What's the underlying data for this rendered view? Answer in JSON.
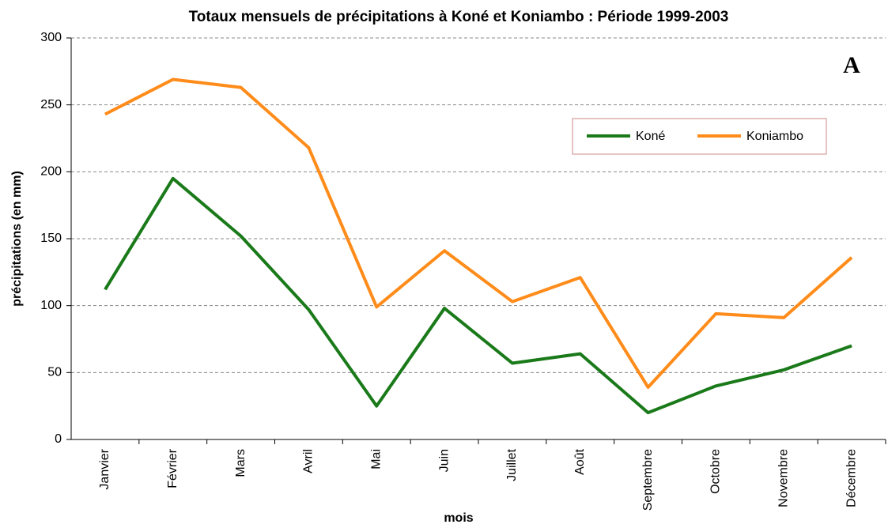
{
  "chart_data": {
    "type": "line",
    "title": "Totaux mensuels de précipitations à Koné et Koniambo : Période 1999-2003",
    "annotation": "A",
    "x_label": "mois",
    "y_label": "précipitations (en mm)",
    "categories": [
      "Janvier",
      "Février",
      "Mars",
      "Avril",
      "Mai",
      "Juin",
      "Juillet",
      "Août",
      "Septembre",
      "Octobre",
      "Novembre",
      "Décembre"
    ],
    "series": [
      {
        "name": "Koné",
        "color": "#1a7a1a",
        "values": [
          112,
          195,
          152,
          97,
          25,
          98,
          57,
          64,
          20,
          40,
          52,
          70
        ]
      },
      {
        "name": "Koniambo",
        "color": "#ff8c1a",
        "values": [
          243,
          269,
          263,
          218,
          99,
          141,
          103,
          121,
          39,
          94,
          91,
          136
        ]
      }
    ],
    "ylim": [
      0,
      300
    ],
    "yticks": [
      0,
      50,
      100,
      150,
      200,
      250,
      300
    ],
    "grid": true,
    "legend": "upper right"
  }
}
